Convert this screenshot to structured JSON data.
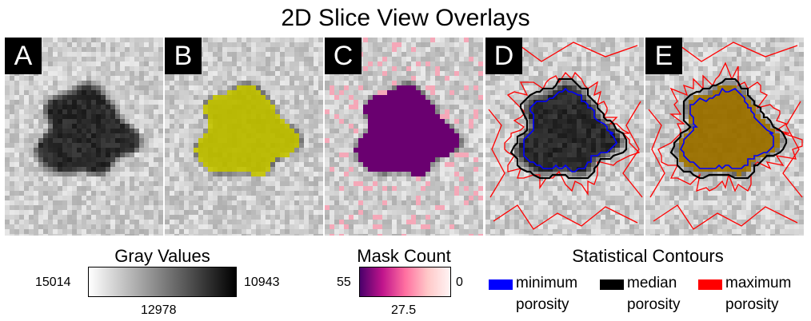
{
  "title": "2D Slice View Overlays",
  "panels": [
    {
      "label": "A",
      "overlay": "none"
    },
    {
      "label": "B",
      "overlay": "mask"
    },
    {
      "label": "C",
      "overlay": "count"
    },
    {
      "label": "D",
      "overlay": "contours"
    },
    {
      "label": "E",
      "overlay": "contours-filled"
    }
  ],
  "gray_colorbar": {
    "title": "Gray Values",
    "left_value": "15014",
    "mid_value": "12978",
    "right_value": "10943",
    "colors": [
      "#ffffff",
      "#000000"
    ]
  },
  "mask_colorbar": {
    "title": "Mask Count",
    "left_value": "55",
    "mid_value": "27.5",
    "right_value": "0",
    "colors": [
      "#4a006b",
      "#c0148c",
      "#ff6fa0",
      "#ffc8c8",
      "#fff4f4"
    ]
  },
  "contours_legend": {
    "title": "Statistical Contours",
    "items": [
      {
        "line1": "minimum",
        "line2": "porosity",
        "color": "#0000ff"
      },
      {
        "line1": "median",
        "line2": "porosity",
        "color": "#000000"
      },
      {
        "line1": "maximum",
        "line2": "porosity",
        "color": "#ff0000"
      }
    ]
  },
  "overlay_colors": {
    "mask_fill": "#d4d400",
    "count_fill": "#6a0070",
    "count_halo": "#f5a8b8",
    "filled_region": "#b08000"
  }
}
